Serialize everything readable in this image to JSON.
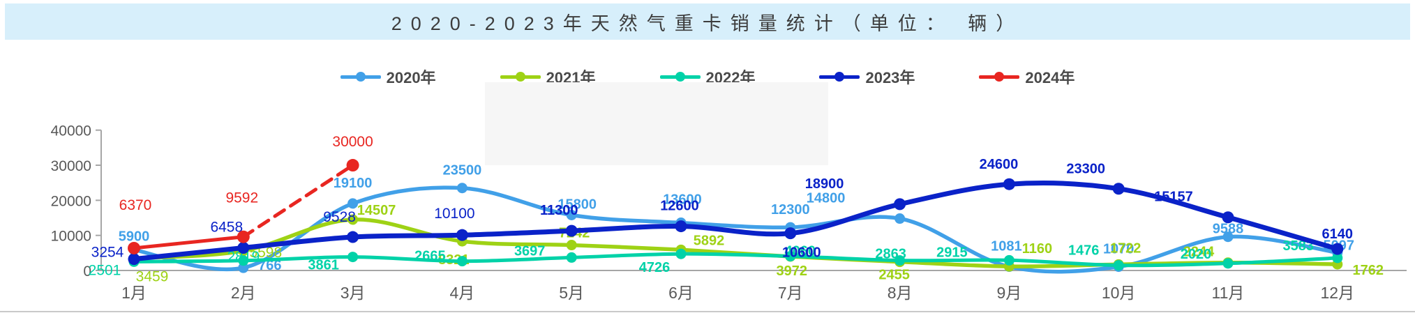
{
  "title": {
    "text": "2020-2023年天然气重卡销量统计（单位： 辆）"
  },
  "colors": {
    "banner_bg": "#d7effb",
    "title_text": "#3c3c3c",
    "axis_line": "#a6a6a6",
    "axis_text": "#595959",
    "legend_text": "#4a4a4a",
    "watermark_box": "#f6f6f6",
    "bottom_rule": "#c9c9c9"
  },
  "chart_data": {
    "type": "line",
    "title": "2020-2023年天然气重卡销量统计（单位： 辆）",
    "categories": [
      "1月",
      "2月",
      "3月",
      "4月",
      "5月",
      "6月",
      "7月",
      "8月",
      "9月",
      "10月",
      "11月",
      "12月"
    ],
    "ylim": [
      0,
      40000
    ],
    "yticks": [
      0,
      10000,
      20000,
      30000,
      40000
    ],
    "grid": false,
    "legend_position": "top",
    "series": [
      {
        "name": "2020年",
        "color": "#41a0e8",
        "dashed": false,
        "values": [
          5900,
          766,
          19100,
          23500,
          15800,
          13600,
          12300,
          14800,
          1081,
          1070,
          9588,
          5097
        ],
        "label_offsets": [
          [
            0,
            -20
          ],
          [
            38,
            -4
          ],
          [
            0,
            -30
          ],
          [
            0,
            -26
          ],
          [
            8,
            -16
          ],
          [
            2,
            -34
          ],
          [
            0,
            -26
          ],
          [
            -106,
            -30
          ],
          [
            -4,
            -30
          ],
          [
            0,
            -26
          ],
          [
            0,
            -12
          ],
          [
            2,
            -11
          ]
        ],
        "label_serif": [
          false,
          false,
          false,
          false,
          false,
          false,
          false,
          false,
          false,
          false,
          false,
          false
        ]
      },
      {
        "name": "2021年",
        "color": "#9ed215",
        "dashed": false,
        "values": [
          3459,
          5598,
          14507,
          8321,
          7242,
          5892,
          3972,
          2455,
          1160,
          1722,
          2244,
          1762
        ],
        "label_offsets": [
          [
            26,
            26
          ],
          [
            32,
            2
          ],
          [
            34,
            -14
          ],
          [
            -12,
            26
          ],
          [
            4,
            -18
          ],
          [
            40,
            -14
          ],
          [
            2,
            20
          ],
          [
            -8,
            18
          ],
          [
            40,
            -26
          ],
          [
            10,
            -24
          ],
          [
            -42,
            -16
          ],
          [
            44,
            8
          ]
        ],
        "label_serif": [
          true,
          true,
          false,
          false,
          false,
          false,
          false,
          false,
          false,
          false,
          false,
          false
        ]
      },
      {
        "name": "2022年",
        "color": "#00d2a8",
        "dashed": false,
        "values": [
          2501,
          2819,
          3861,
          2665,
          3697,
          4726,
          4060,
          2863,
          2915,
          1476,
          2020,
          3583
        ],
        "label_offsets": [
          [
            -42,
            12
          ],
          [
            0,
            -6
          ],
          [
            -42,
            11
          ],
          [
            -46,
            -8
          ],
          [
            -60,
            -10
          ],
          [
            -38,
            19
          ],
          [
            14,
            -8
          ],
          [
            -13,
            -10
          ],
          [
            -82,
            -12
          ],
          [
            -50,
            -22
          ],
          [
            -46,
            -14
          ],
          [
            -56,
            -18
          ]
        ],
        "label_serif": [
          true,
          true,
          false,
          false,
          false,
          false,
          false,
          false,
          false,
          false,
          false,
          false
        ]
      },
      {
        "name": "2023年",
        "color": "#0a22c8",
        "dashed": false,
        "values": [
          3254,
          6458,
          9528,
          10100,
          11300,
          12600,
          10600,
          18900,
          24600,
          23300,
          15157,
          6140
        ],
        "label_offsets": [
          [
            -38,
            -10
          ],
          [
            -24,
            -30
          ],
          [
            -19,
            -29
          ],
          [
            -11,
            -31
          ],
          [
            -18,
            -30
          ],
          [
            -2,
            -30
          ],
          [
            16,
            27
          ],
          [
            -108,
            -30
          ],
          [
            -15,
            -29
          ],
          [
            -47,
            -29
          ],
          [
            -78,
            -30
          ],
          [
            0,
            -22
          ]
        ],
        "label_serif": [
          true,
          true,
          true,
          true,
          false,
          false,
          false,
          false,
          false,
          false,
          false,
          false
        ]
      },
      {
        "name": "2024年",
        "color": "#e82621",
        "dashed": true,
        "dash_from": 1,
        "values": [
          6370,
          9592,
          30000
        ],
        "label_offsets": [
          [
            2,
            -62
          ],
          [
            -2,
            -56
          ],
          [
            0,
            -34
          ]
        ],
        "label_serif": [
          true,
          true,
          true
        ]
      }
    ]
  }
}
